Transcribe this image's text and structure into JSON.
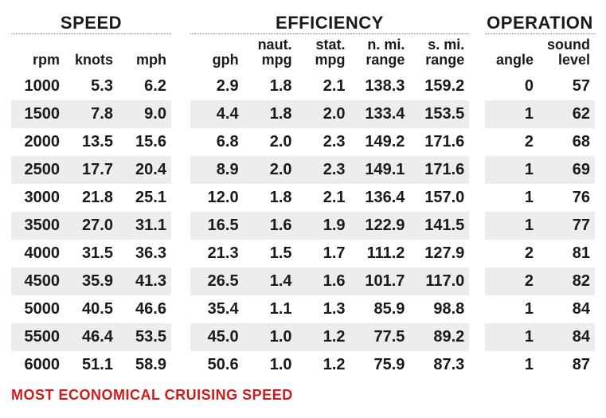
{
  "groups": {
    "speed": "SPEED",
    "efficiency": "EFFICIENCY",
    "operation": "OPERATION"
  },
  "headers": {
    "rpm": "rpm",
    "knots": "knots",
    "mph": "mph",
    "gph": "gph",
    "nmpg_top": "naut.",
    "nmpg_bot": "mpg",
    "smpg_top": "stat.",
    "smpg_bot": "mpg",
    "nrange_top": "n. mi.",
    "nrange_bot": "range",
    "srange_top": "s. mi.",
    "srange_bot": "range",
    "angle": "angle",
    "sound_top": "sound",
    "sound_bot": "level"
  },
  "rows": [
    {
      "rpm": "1000",
      "knots": "5.3",
      "mph": "6.2",
      "gph": "2.9",
      "nmpg": "1.8",
      "smpg": "2.1",
      "nrange": "138.3",
      "srange": "159.2",
      "angle": "0",
      "sound": "57"
    },
    {
      "rpm": "1500",
      "knots": "7.8",
      "mph": "9.0",
      "gph": "4.4",
      "nmpg": "1.8",
      "smpg": "2.0",
      "nrange": "133.4",
      "srange": "153.5",
      "angle": "1",
      "sound": "62"
    },
    {
      "rpm": "2000",
      "knots": "13.5",
      "mph": "15.6",
      "gph": "6.8",
      "nmpg": "2.0",
      "smpg": "2.3",
      "nrange": "149.2",
      "srange": "171.6",
      "angle": "2",
      "sound": "68"
    },
    {
      "rpm": "2500",
      "knots": "17.7",
      "mph": "20.4",
      "gph": "8.9",
      "nmpg": "2.0",
      "smpg": "2.3",
      "nrange": "149.1",
      "srange": "171.6",
      "angle": "1",
      "sound": "69"
    },
    {
      "rpm": "3000",
      "knots": "21.8",
      "mph": "25.1",
      "gph": "12.0",
      "nmpg": "1.8",
      "smpg": "2.1",
      "nrange": "136.4",
      "srange": "157.0",
      "angle": "1",
      "sound": "76"
    },
    {
      "rpm": "3500",
      "knots": "27.0",
      "mph": "31.1",
      "gph": "16.5",
      "nmpg": "1.6",
      "smpg": "1.9",
      "nrange": "122.9",
      "srange": "141.5",
      "angle": "1",
      "sound": "77"
    },
    {
      "rpm": "4000",
      "knots": "31.5",
      "mph": "36.3",
      "gph": "21.3",
      "nmpg": "1.5",
      "smpg": "1.7",
      "nrange": "111.2",
      "srange": "127.9",
      "angle": "2",
      "sound": "81"
    },
    {
      "rpm": "4500",
      "knots": "35.9",
      "mph": "41.3",
      "gph": "26.5",
      "nmpg": "1.4",
      "smpg": "1.6",
      "nrange": "101.7",
      "srange": "117.0",
      "angle": "2",
      "sound": "82"
    },
    {
      "rpm": "5000",
      "knots": "40.5",
      "mph": "46.6",
      "gph": "35.4",
      "nmpg": "1.1",
      "smpg": "1.3",
      "nrange": "85.9",
      "srange": "98.8",
      "angle": "1",
      "sound": "84"
    },
    {
      "rpm": "5500",
      "knots": "46.4",
      "mph": "53.5",
      "gph": "45.0",
      "nmpg": "1.0",
      "smpg": "1.2",
      "nrange": "77.5",
      "srange": "89.2",
      "angle": "1",
      "sound": "84"
    },
    {
      "rpm": "6000",
      "knots": "51.1",
      "mph": "58.9",
      "gph": "50.6",
      "nmpg": "1.0",
      "smpg": "1.2",
      "nrange": "75.9",
      "srange": "87.3",
      "angle": "1",
      "sound": "87"
    }
  ],
  "footer": "MOST ECONOMICAL CRUISING SPEED",
  "style": {
    "alt_row_bg": "#ededed",
    "text_color": "#1a1a1a",
    "footer_color": "#d11b1b",
    "border_color": "#888888",
    "group_fontsize": 22,
    "header_fontsize": 18,
    "cell_fontsize": 20,
    "footer_fontsize": 18
  }
}
